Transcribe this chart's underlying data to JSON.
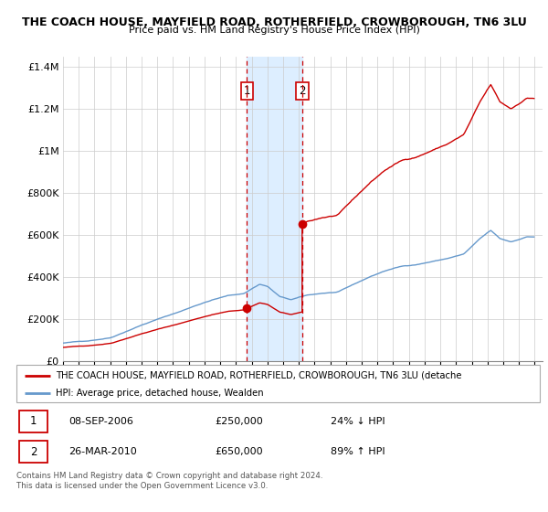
{
  "title": "THE COACH HOUSE, MAYFIELD ROAD, ROTHERFIELD, CROWBOROUGH, TN6 3LU",
  "subtitle": "Price paid vs. HM Land Registry's House Price Index (HPI)",
  "legend_line1": "THE COACH HOUSE, MAYFIELD ROAD, ROTHERFIELD, CROWBOROUGH, TN6 3LU (detache",
  "legend_line2": "HPI: Average price, detached house, Wealden",
  "sale1_label": "1",
  "sale1_date": "08-SEP-2006",
  "sale1_price": "£250,000",
  "sale1_hpi": "24% ↓ HPI",
  "sale2_label": "2",
  "sale2_date": "26-MAR-2010",
  "sale2_price": "£650,000",
  "sale2_hpi": "89% ↑ HPI",
  "footnote": "Contains HM Land Registry data © Crown copyright and database right 2024.\nThis data is licensed under the Open Government Licence v3.0.",
  "red_color": "#cc0000",
  "blue_color": "#6699cc",
  "shade_color": "#ddeeff",
  "background_color": "#ffffff",
  "ylim": [
    0,
    1450000
  ],
  "yticks": [
    0,
    200000,
    400000,
    600000,
    800000,
    1000000,
    1200000,
    1400000
  ],
  "ytick_labels": [
    "£0",
    "£200K",
    "£400K",
    "£600K",
    "£800K",
    "£1M",
    "£1.2M",
    "£1.4M"
  ],
  "sale1_x": 2006.69,
  "sale2_x": 2010.23,
  "sale1_y": 250000,
  "sale2_y": 650000,
  "xticks": [
    1995,
    1996,
    1997,
    1998,
    1999,
    2000,
    2001,
    2002,
    2003,
    2004,
    2005,
    2006,
    2007,
    2008,
    2009,
    2010,
    2011,
    2012,
    2013,
    2014,
    2015,
    2016,
    2017,
    2018,
    2019,
    2020,
    2021,
    2022,
    2023,
    2024,
    2025
  ]
}
